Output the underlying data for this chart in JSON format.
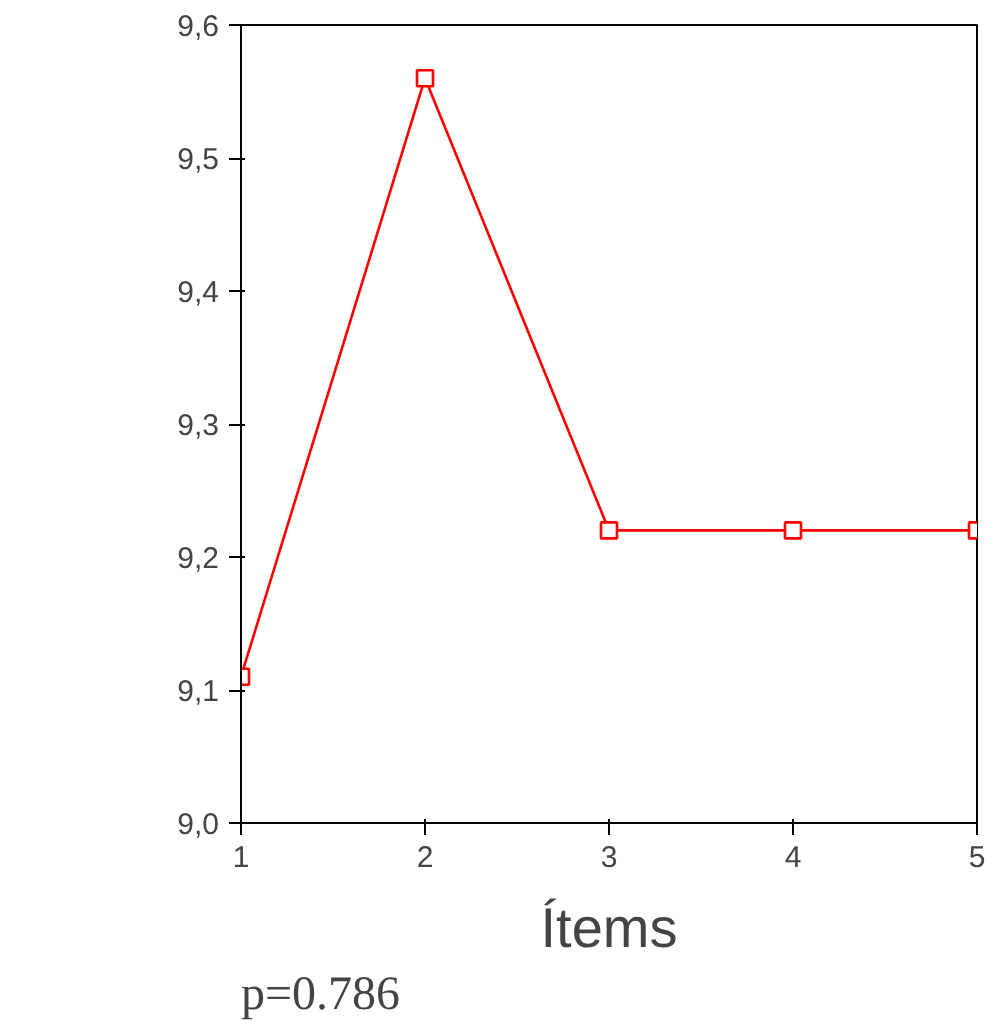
{
  "chart_data": {
    "type": "line",
    "xlabel": "Ítems",
    "annotations": [
      "p=0.786"
    ],
    "x": [
      1,
      2,
      3,
      4,
      5
    ],
    "series": [
      {
        "color": "#ff0000",
        "values": [
          9.11,
          9.56,
          9.22,
          9.22,
          9.22
        ]
      }
    ],
    "xlim": [
      1,
      5
    ],
    "xticks": [
      1,
      2,
      3,
      4,
      5
    ],
    "ylim": [
      9.0,
      9.6
    ],
    "yticks": [
      {
        "value": 9.0,
        "label": "9,0"
      },
      {
        "value": 9.1,
        "label": "9,1"
      },
      {
        "value": 9.2,
        "label": "9,2"
      },
      {
        "value": 9.3,
        "label": "9,3"
      },
      {
        "value": 9.4,
        "label": "9,4"
      },
      {
        "value": 9.5,
        "label": "9,5"
      },
      {
        "value": 9.6,
        "label": "9,6"
      }
    ],
    "grid": false,
    "marker": "square",
    "line_style": "solid"
  }
}
